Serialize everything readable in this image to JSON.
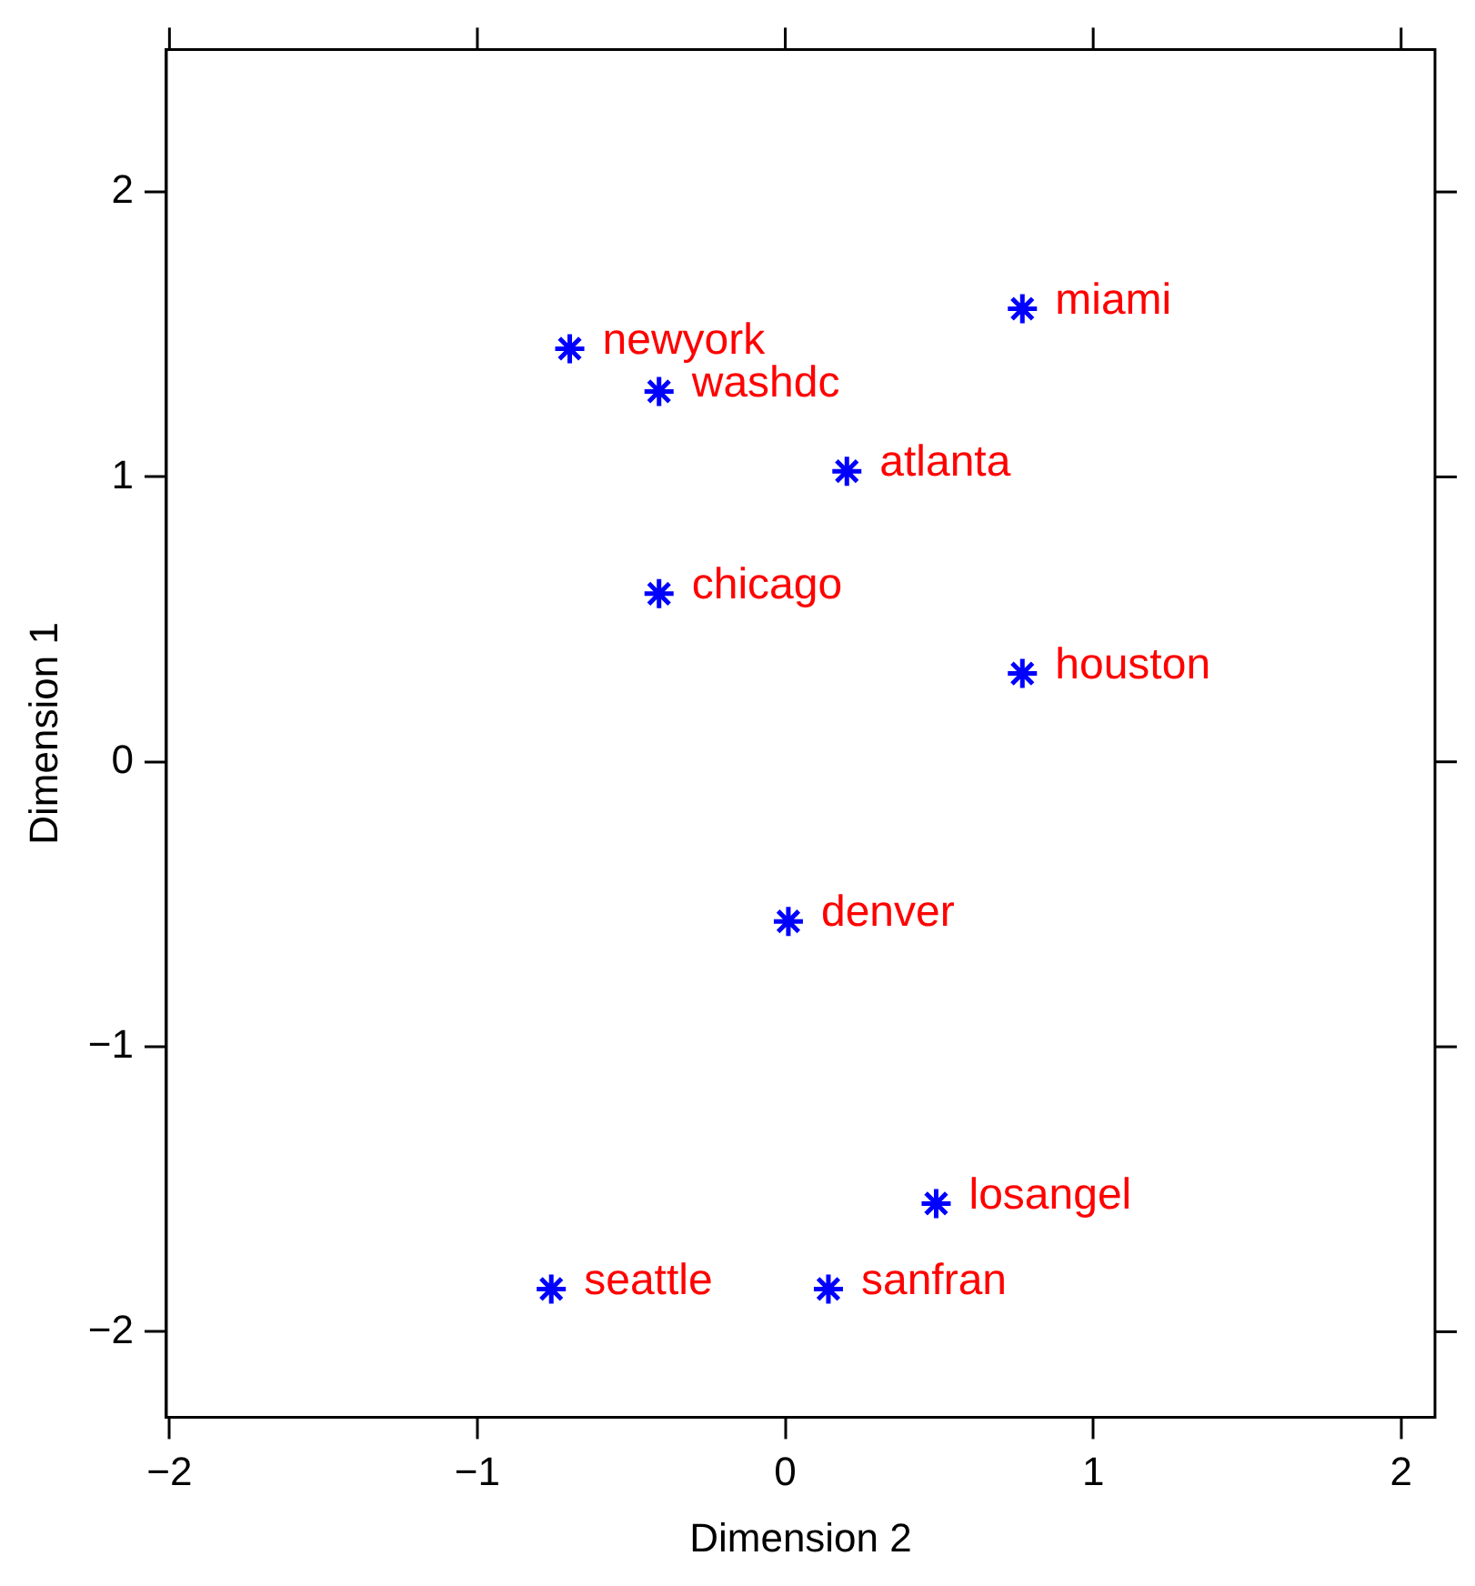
{
  "chart_data": {
    "type": "scatter",
    "xlabel": "Dimension 2",
    "ylabel": "Dimension 1",
    "x": [
      0.77,
      -0.7,
      -0.41,
      0.2,
      -0.41,
      0.77,
      0.01,
      0.49,
      -0.76,
      0.14
    ],
    "values": [
      1.59,
      1.45,
      1.3,
      1.02,
      0.59,
      0.31,
      -0.56,
      -1.55,
      -1.85,
      -1.85
    ],
    "color": "#0000ff",
    "marker": "cross",
    "grid": false,
    "legend": false,
    "xlim": [
      -2.01,
      2.11
    ],
    "ylim": [
      -2.3,
      2.5
    ],
    "xticks": [
      -2,
      -1,
      0,
      1,
      2
    ],
    "yticks": [
      -2,
      -1,
      0,
      1,
      2
    ],
    "annotations": [
      {
        "text": "miami",
        "x": 0.77,
        "y": 1.59
      },
      {
        "text": "newyork",
        "x": -0.7,
        "y": 1.45
      },
      {
        "text": "washdc",
        "x": -0.41,
        "y": 1.3
      },
      {
        "text": "atlanta",
        "x": 0.2,
        "y": 1.02
      },
      {
        "text": "chicago",
        "x": -0.41,
        "y": 0.59
      },
      {
        "text": "houston",
        "x": 0.77,
        "y": 0.31
      },
      {
        "text": "denver",
        "x": 0.01,
        "y": -0.56
      },
      {
        "text": "losangel",
        "x": 0.49,
        "y": -1.55
      },
      {
        "text": "seattle",
        "x": -0.76,
        "y": -1.85
      },
      {
        "text": "sanfran",
        "x": 0.14,
        "y": -1.85
      }
    ]
  }
}
